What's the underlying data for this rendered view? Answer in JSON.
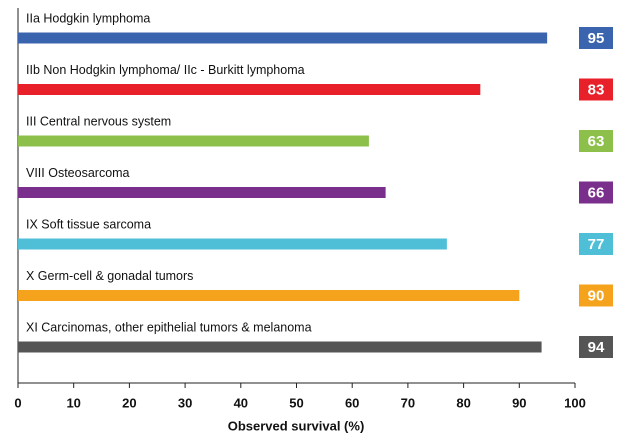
{
  "chart_data": {
    "type": "bar",
    "orientation": "horizontal",
    "categories": [
      "IIa Hodgkin lymphoma",
      "IIb Non Hodgkin lymphoma/ IIc - Burkitt lymphoma",
      "III Central nervous system",
      "VIII Osteosarcoma",
      "IX Soft tissue sarcoma",
      "X Germ-cell & gonadal tumors",
      "XI Carcinomas, other epithelial tumors & melanoma"
    ],
    "values": [
      95,
      83,
      63,
      66,
      77,
      90,
      94
    ],
    "colors": [
      "#3b64ae",
      "#e8202a",
      "#8dc04b",
      "#7b2f8c",
      "#4fbfd8",
      "#f5a31c",
      "#555555"
    ],
    "xlabel": "Observed survival (%)",
    "xlim": [
      0,
      100
    ],
    "xticks": [
      0,
      10,
      20,
      30,
      40,
      50,
      60,
      70,
      80,
      90,
      100
    ]
  }
}
